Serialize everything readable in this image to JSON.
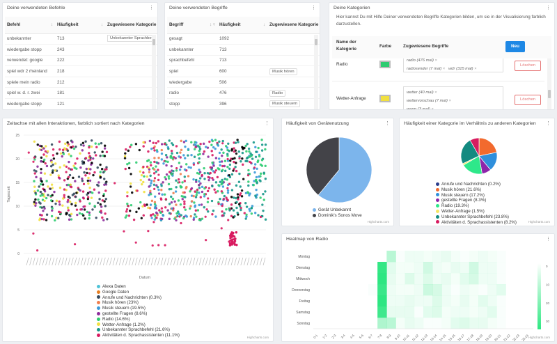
{
  "commands_panel": {
    "title": "Deine verwendeten Befehle",
    "columns": [
      "Befehl",
      "Häufigkeit",
      "Zugewiesene Kategorie"
    ],
    "rows": [
      {
        "befehl": "unbekannter",
        "count": "713",
        "category": "Unbekannter Sprachbefehl"
      },
      {
        "befehl": "wiedergabe stopp",
        "count": "243",
        "category": ""
      },
      {
        "befehl": "verwendet: google",
        "count": "222",
        "category": ""
      },
      {
        "befehl": "spiel wdr 2 rheinland",
        "count": "218",
        "category": ""
      },
      {
        "befehl": "spiele mein radio",
        "count": "212",
        "category": ""
      },
      {
        "befehl": "spiel w. d. r. zwei",
        "count": "181",
        "category": ""
      },
      {
        "befehl": "wiedergabe stopp",
        "count": "121",
        "category": ""
      }
    ]
  },
  "terms_panel": {
    "title": "Deine verwendeten Begriffe",
    "columns": [
      "Begriff",
      "Häufigkeit",
      "Zugewiesene Kategorie"
    ],
    "rows": [
      {
        "term": "gesagt",
        "count": "1092",
        "category": ""
      },
      {
        "term": "unbekannter",
        "count": "713",
        "category": ""
      },
      {
        "term": "sprachbefehl",
        "count": "713",
        "category": ""
      },
      {
        "term": "spiel",
        "count": "600",
        "category": "Musik hören"
      },
      {
        "term": "wiedergabe",
        "count": "506",
        "category": ""
      },
      {
        "term": "radio",
        "count": "476",
        "category": "Radio"
      },
      {
        "term": "stopp",
        "count": "396",
        "category": "Musik steuern"
      }
    ]
  },
  "categories_panel": {
    "title": "Deine Kategorien",
    "description": "Hier kannst Du mit Hilfe Deiner verwendeten Begriffe Kategorien bilden, um sie in der Visualisierung farblich darzustellen.",
    "col_name": "Name der Kategorie",
    "col_color": "Farbe",
    "col_terms": "Zugewiesene Begriffe",
    "new_label": "Neu",
    "delete_label": "Löschen",
    "rows": [
      {
        "name": "Radio",
        "color": "#2ecc71",
        "terms": [
          "radio (476 mal)",
          "radiosender (7 mal)",
          "wdr (315 mal)"
        ]
      },
      {
        "name": "Wetter-Anfrage",
        "color": "#f1e040",
        "terms": [
          "wetter (40 mal)",
          "wettervorschau (7 mal)",
          "warm (3 mal)"
        ]
      }
    ]
  },
  "timeline_panel": {
    "title": "Zeitachse mit allen Interaktionen, farblich sortiert nach Kategorien",
    "credit": "Highcharts.com"
  },
  "device_panel": {
    "title": "Häufigkeit von Gerätenutzung",
    "credit": "Highcharts.com"
  },
  "category_share_panel": {
    "title": "Häufigkeit einer Kategorie im Verhältnis zu anderen Kategorien",
    "credit": "Highcharts.com"
  },
  "heatmap_panel": {
    "title": "Heatmap von Radio",
    "credit": "Highcharts.com"
  },
  "chart_data": [
    {
      "type": "scatter",
      "title": "Zeitachse mit allen Interaktionen, farblich sortiert nach Kategorien",
      "xlabel": "Datum",
      "ylabel": "Tageszeit",
      "ylim": [
        0,
        25
      ],
      "yticks": [
        0,
        5,
        10,
        15,
        20,
        25
      ],
      "legend": [
        {
          "name": "Alexa Daten",
          "color": "#4fc3d7",
          "marker": "circle"
        },
        {
          "name": "Google Daten",
          "color": "#e67e22",
          "marker": "diamond"
        },
        {
          "name": "Anrufe und Nachrichten (0.3%)",
          "color": "#34495e",
          "marker": "square"
        },
        {
          "name": "Musik hören (23%)",
          "color": "#f08050",
          "marker": "triangle"
        },
        {
          "name": "Musik steuern (19.5%)",
          "color": "#3a9ad9",
          "marker": "triangle-down"
        },
        {
          "name": "gestellte Fragen (8.6%)",
          "color": "#8e2c9c",
          "marker": "circle"
        },
        {
          "name": "Radio (14.6%)",
          "color": "#2ecc71",
          "marker": "diamond"
        },
        {
          "name": "Wetter-Anfrage (1.2%)",
          "color": "#f1e040",
          "marker": "square"
        },
        {
          "name": "Unbekannter Sprachbefehl (21.6%)",
          "color": "#16988a",
          "marker": "triangle"
        },
        {
          "name": "Aktivitäten d. Sprachassistenten (11.1%)",
          "color": "#d81b60",
          "marker": "triangle-down"
        }
      ]
    },
    {
      "type": "pie",
      "title": "Häufigkeit von Gerätenutzung",
      "categories": [
        "Gerät Unbekannt",
        "Dominik's Sonos Move"
      ],
      "values": [
        61,
        39
      ],
      "colors": [
        "#7cb5ec",
        "#434348"
      ]
    },
    {
      "type": "pie",
      "title": "Häufigkeit einer Kategorie im Verhältnis zu anderen Kategorien",
      "categories": [
        "Anrufe und Nachrichten",
        "Musik hören",
        "Musik steuern",
        "gestellte Fragen",
        "Radio",
        "Wetter-Anfrage",
        "Unbekannter Sprachbefehl",
        "Aktivitäten d. Sprachassistenten"
      ],
      "values": [
        0.2,
        21.6,
        17.2,
        8.3,
        19.3,
        1.5,
        23.8,
        8.2
      ],
      "labels": [
        "Anrufe und Nachrichten (0.2%)",
        "Musik hören (21.6%)",
        "Musik steuern (17.2%)",
        "gestellte Fragen (8.3%)",
        "Radio (19.3%)",
        "Wetter-Anfrage (1.5%)",
        "Unbekannter Sprachbefehl (23.8%)",
        "Aktivitäten d. Sprachassistenten (8.2%)"
      ],
      "colors": [
        "#2c3e8c",
        "#f26a2e",
        "#2f8fdc",
        "#8e24aa",
        "#2ee88a",
        "#f5e663",
        "#138a80",
        "#d81b60"
      ]
    },
    {
      "type": "heatmap",
      "title": "Heatmap von Radio",
      "y_categories": [
        "Montag",
        "Dienstag",
        "Mittwoch",
        "Donnerstag",
        "Freitag",
        "Samstag",
        "Sonntag"
      ],
      "x_categories": [
        "0-1",
        "1-2",
        "2-3",
        "3-4",
        "4-5",
        "5-6",
        "6-7",
        "7-8",
        "8-9",
        "9-10",
        "10-11",
        "11-12",
        "12-13",
        "13-14",
        "14-15",
        "15-16",
        "16-17",
        "17-18",
        "18-19",
        "19-20",
        "20-21",
        "21-22",
        "22-23",
        "23-24"
      ],
      "colorbar_ticks": [
        0,
        10,
        20,
        30
      ],
      "values": [
        [
          0,
          0,
          0,
          0,
          0,
          0,
          0,
          0,
          12,
          1,
          3,
          3,
          2,
          3,
          4,
          2,
          1,
          2,
          3,
          2,
          1,
          0,
          0,
          0
        ],
        [
          0,
          0,
          0,
          0,
          0,
          0,
          0,
          35,
          5,
          2,
          2,
          3,
          8,
          3,
          2,
          4,
          3,
          8,
          3,
          3,
          1,
          0,
          0,
          0
        ],
        [
          0,
          0,
          0,
          0,
          0,
          0,
          0,
          36,
          4,
          2,
          6,
          3,
          6,
          3,
          4,
          2,
          5,
          7,
          3,
          3,
          1,
          0,
          0,
          0
        ],
        [
          0,
          0,
          0,
          0,
          0,
          0,
          1,
          34,
          3,
          2,
          2,
          3,
          9,
          7,
          3,
          1,
          3,
          2,
          1,
          3,
          5,
          0,
          0,
          0
        ],
        [
          0,
          0,
          0,
          0,
          0,
          0,
          0,
          36,
          3,
          3,
          4,
          3,
          3,
          6,
          3,
          2,
          4,
          2,
          5,
          3,
          1,
          0,
          0,
          0
        ],
        [
          0,
          0,
          0,
          0,
          0,
          0,
          0,
          33,
          4,
          4,
          4,
          1,
          5,
          6,
          2,
          3,
          3,
          2,
          3,
          5,
          1,
          0,
          0,
          0
        ],
        [
          0,
          0,
          0,
          0,
          0,
          0,
          0,
          14,
          12,
          2,
          4,
          3,
          1,
          1,
          2,
          5,
          6,
          4,
          4,
          2,
          1,
          0,
          0,
          0
        ]
      ]
    }
  ]
}
